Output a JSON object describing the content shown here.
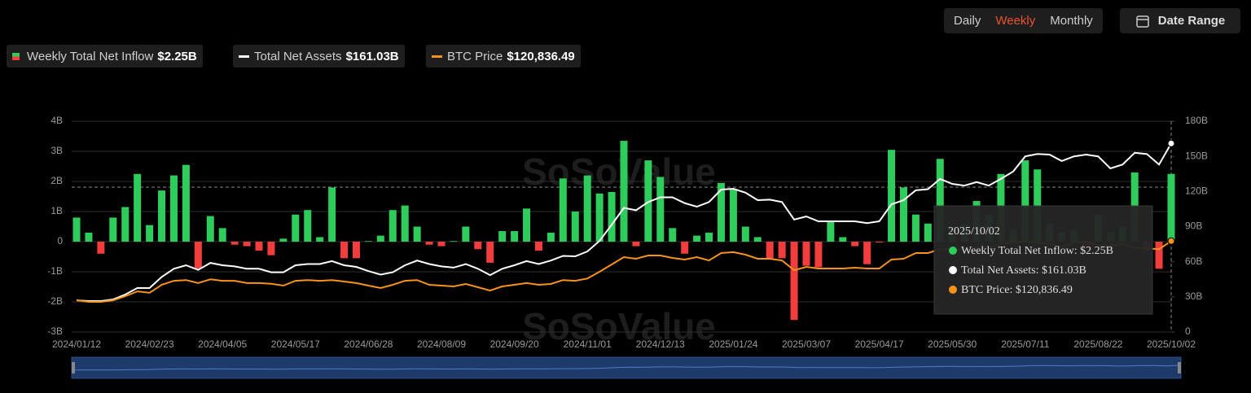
{
  "controls": {
    "periods": [
      "Daily",
      "Weekly",
      "Monthly"
    ],
    "active_period": 1,
    "date_range": "Date Range"
  },
  "chart_data": {
    "type": "bar-line",
    "watermark": "SoSoValue",
    "categories": [
      "2024/01/12",
      null,
      null,
      null,
      null,
      null,
      "2024/02/23",
      null,
      null,
      null,
      null,
      null,
      "2024/04/05",
      null,
      null,
      null,
      null,
      null,
      "2024/05/17",
      null,
      null,
      null,
      null,
      null,
      "2024/06/28",
      null,
      null,
      null,
      null,
      null,
      "2024/08/09",
      null,
      null,
      null,
      null,
      null,
      "2024/09/20",
      null,
      null,
      null,
      null,
      null,
      "2024/11/01",
      null,
      null,
      null,
      null,
      null,
      "2024/12/13",
      null,
      null,
      null,
      null,
      null,
      "2025/01/24",
      null,
      null,
      null,
      null,
      null,
      "2025/03/07",
      null,
      null,
      null,
      null,
      null,
      "2025/04/17",
      null,
      null,
      null,
      null,
      null,
      "2025/05/30",
      null,
      null,
      null,
      null,
      null,
      "2025/07/11",
      null,
      null,
      null,
      null,
      null,
      "2025/08/22",
      null,
      null,
      null,
      null,
      null,
      "2025/10/02"
    ],
    "series": [
      {
        "name": "Weekly Total Net Inflow",
        "legend_value": "$2.25B",
        "axis": "y",
        "type": "bar",
        "colors": {
          "positive": "#2ecc5a",
          "negative": "#f23d3d"
        },
        "values": [
          0.8,
          0.3,
          -0.4,
          0.8,
          1.15,
          2.25,
          0.55,
          1.7,
          2.2,
          2.55,
          -0.9,
          0.85,
          0.45,
          -0.1,
          -0.15,
          -0.3,
          -0.45,
          0.1,
          0.9,
          1.05,
          0.15,
          1.8,
          -0.55,
          -0.55,
          0.02,
          0.2,
          1.05,
          1.2,
          0.5,
          -0.1,
          -0.15,
          0.02,
          0.5,
          -0.25,
          -0.7,
          0.35,
          0.35,
          1.1,
          -0.3,
          0.3,
          2.1,
          1.0,
          2.2,
          1.6,
          1.65,
          3.35,
          -0.15,
          2.7,
          2.15,
          0.45,
          -0.4,
          0.2,
          0.3,
          1.95,
          1.75,
          0.5,
          0.15,
          -0.55,
          -0.55,
          -2.6,
          -0.8,
          -0.85,
          0.7,
          0.15,
          -0.15,
          -0.75,
          -0.03,
          3.05,
          1.8,
          0.9,
          0.6,
          2.75,
          0.5,
          0.6,
          1.35,
          0.9,
          2.25,
          0.4,
          2.7,
          2.4,
          0.6,
          0.3,
          0.4,
          -0.2,
          0.9,
          0.3,
          0.5,
          2.3,
          -0.3,
          -0.9,
          2.25
        ]
      },
      {
        "name": "Total Net Assets",
        "legend_value": "$161.03B",
        "axis": "y2",
        "type": "line",
        "color": "#ffffff",
        "values": [
          27,
          26.4,
          26.4,
          27.8,
          32,
          37.5,
          37.5,
          47,
          54,
          57,
          53,
          59,
          57,
          56,
          54,
          54,
          51,
          51,
          57,
          58,
          58,
          60.5,
          57,
          55.6,
          52,
          49,
          51,
          57,
          61,
          58,
          56,
          55,
          58,
          54,
          48.6,
          54,
          57,
          60.5,
          58,
          61,
          65,
          64.6,
          68.8,
          77.8,
          91.7,
          106,
          104,
          111,
          115,
          115,
          110,
          107,
          111,
          121.6,
          122.3,
          119,
          112.6,
          113,
          111,
          96,
          98.7,
          94.5,
          94.5,
          94.5,
          94.5,
          93,
          94.5,
          109,
          112.6,
          121,
          122,
          130.7,
          126.5,
          125,
          128,
          125,
          130.7,
          137,
          150,
          152,
          151.5,
          146,
          150,
          151.5,
          150,
          139.7,
          143,
          153,
          152,
          143,
          161.03
        ]
      },
      {
        "name": "BTC Price",
        "legend_value": "$120,836.49",
        "axis": "y3",
        "type": "line",
        "color": "#f7931a",
        "values": [
          42200,
          40000,
          40000,
          42000,
          47500,
          54000,
          52000,
          62700,
          68000,
          69000,
          65000,
          70000,
          68000,
          68000,
          65000,
          65000,
          64000,
          61600,
          68000,
          69000,
          68000,
          69000,
          67000,
          65000,
          61600,
          58400,
          62700,
          68000,
          69000,
          62700,
          61600,
          60500,
          63800,
          59500,
          55000,
          60500,
          62700,
          65000,
          62700,
          63800,
          69000,
          68000,
          71000,
          80000,
          89700,
          99500,
          97300,
          101600,
          101600,
          98400,
          96200,
          99500,
          95000,
          104900,
          106000,
          102700,
          97300,
          97300,
          95000,
          82000,
          86500,
          84300,
          84300,
          84300,
          85400,
          84300,
          84300,
          96200,
          97300,
          104900,
          104900,
          110000,
          110000,
          110000,
          111000,
          112000,
          117000,
          119000,
          120000,
          119000,
          117000,
          113500,
          119000,
          120000,
          115700,
          114600,
          117000,
          112000,
          111000,
          110000,
          120836.49
        ]
      }
    ],
    "ylim": [
      -3,
      4
    ],
    "yticks": [
      {
        "value": -3,
        "label": "-3B"
      },
      {
        "value": -2,
        "label": "-2B"
      },
      {
        "value": -1,
        "label": "-1B"
      },
      0,
      {
        "value": 1,
        "label": "1B"
      },
      {
        "value": 2,
        "label": "2B"
      },
      {
        "value": 3,
        "label": "3B"
      },
      {
        "value": 4,
        "label": "4B"
      }
    ],
    "y2lim": [
      0,
      180
    ],
    "y2ticks": [
      0,
      {
        "value": 30,
        "label": "30B"
      },
      {
        "value": 60,
        "label": "60B"
      },
      {
        "value": 90,
        "label": "90B"
      },
      {
        "value": 120,
        "label": "120B"
      },
      {
        "value": 150,
        "label": "150B"
      },
      {
        "value": 180,
        "label": "180B"
      }
    ],
    "y3lim": [
      0,
      280000
    ],
    "grid": true,
    "tooltip": {
      "date": "2025/10/02",
      "items": [
        "Weekly Total Net Inflow: $2.25B",
        "Total Net Assets: $161.03B",
        "BTC Price: $120,836.49"
      ]
    }
  }
}
